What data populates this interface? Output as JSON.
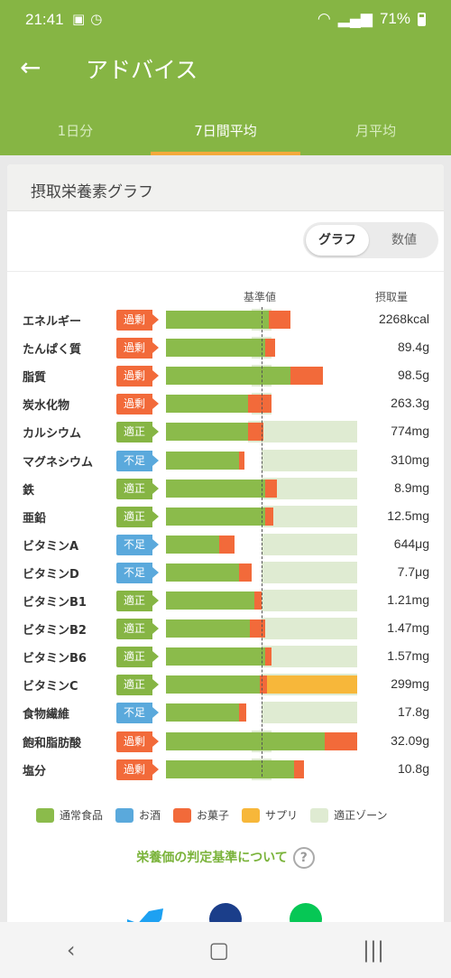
{
  "status_bar": {
    "time": "21:41",
    "battery": "71%"
  },
  "app_bar": {
    "title": "アドバイス",
    "tabs": [
      {
        "label": "1日分",
        "active": false
      },
      {
        "label": "7日間平均",
        "active": true
      },
      {
        "label": "月平均",
        "active": false
      }
    ]
  },
  "card": {
    "title": "摂取栄養素グラフ",
    "toggle": {
      "graph": "グラフ",
      "number": "数値",
      "selected": "グラフ"
    },
    "header_baseline": "基準値",
    "header_intake": "摂取量"
  },
  "nutrients": [
    {
      "name": "エネルギー",
      "status": "過剰",
      "amount": "2268kcal",
      "zone": [
        0.45,
        0.55
      ],
      "food": 0.54,
      "snack": 0.11,
      "supp": 0
    },
    {
      "name": "たんぱく質",
      "status": "過剰",
      "amount": "89.4g",
      "zone": [
        0.45,
        0.55
      ],
      "food": 0.52,
      "snack": 0.05,
      "supp": 0
    },
    {
      "name": "脂質",
      "status": "過剰",
      "amount": "98.5g",
      "zone": [
        0.45,
        0.55
      ],
      "food": 0.65,
      "snack": 0.17,
      "supp": 0
    },
    {
      "name": "炭水化物",
      "status": "過剰",
      "amount": "263.3g",
      "zone": [
        0.45,
        0.55
      ],
      "food": 0.43,
      "snack": 0.12,
      "supp": 0
    },
    {
      "name": "カルシウム",
      "status": "適正",
      "amount": "774mg",
      "zone": [
        0.43,
        1.0
      ],
      "food": 0.43,
      "snack": 0.08,
      "supp": 0
    },
    {
      "name": "マグネシウム",
      "status": "不足",
      "amount": "310mg",
      "zone": [
        0.5,
        1.0
      ],
      "food": 0.38,
      "snack": 0.03,
      "supp": 0
    },
    {
      "name": "鉄",
      "status": "適正",
      "amount": "8.9mg",
      "zone": [
        0.5,
        1.0
      ],
      "food": 0.52,
      "snack": 0.06,
      "supp": 0
    },
    {
      "name": "亜鉛",
      "status": "適正",
      "amount": "12.5mg",
      "zone": [
        0.5,
        1.0
      ],
      "food": 0.52,
      "snack": 0.04,
      "supp": 0
    },
    {
      "name": "ビタミンA",
      "status": "不足",
      "amount": "644μg",
      "zone": [
        0.5,
        1.0
      ],
      "food": 0.28,
      "snack": 0.08,
      "supp": 0
    },
    {
      "name": "ビタミンD",
      "status": "不足",
      "amount": "7.7μg",
      "zone": [
        0.5,
        1.0
      ],
      "food": 0.38,
      "snack": 0.07,
      "supp": 0
    },
    {
      "name": "ビタミンB1",
      "status": "適正",
      "amount": "1.21mg",
      "zone": [
        0.5,
        1.0
      ],
      "food": 0.46,
      "snack": 0.04,
      "supp": 0
    },
    {
      "name": "ビタミンB2",
      "status": "適正",
      "amount": "1.47mg",
      "zone": [
        0.5,
        1.0
      ],
      "food": 0.44,
      "snack": 0.08,
      "supp": 0
    },
    {
      "name": "ビタミンB6",
      "status": "適正",
      "amount": "1.57mg",
      "zone": [
        0.5,
        1.0
      ],
      "food": 0.52,
      "snack": 0.03,
      "supp": 0
    },
    {
      "name": "ビタミンC",
      "status": "適正",
      "amount": "299mg",
      "zone": [
        0.5,
        1.0
      ],
      "food": 0.49,
      "snack": 0.04,
      "supp": 0.47
    },
    {
      "name": "食物繊維",
      "status": "不足",
      "amount": "17.8g",
      "zone": [
        0.5,
        1.0
      ],
      "food": 0.38,
      "snack": 0.04,
      "supp": 0
    },
    {
      "name": "飽和脂肪酸",
      "status": "過剰",
      "amount": "32.09g",
      "zone": [
        0.45,
        0.55
      ],
      "food": 0.83,
      "snack": 0.17,
      "supp": 0
    },
    {
      "name": "塩分",
      "status": "過剰",
      "amount": "10.8g",
      "zone": [
        0.45,
        0.55
      ],
      "food": 0.67,
      "snack": 0.05,
      "supp": 0
    }
  ],
  "legend": [
    {
      "label": "通常食品",
      "color": "#8bbb4b"
    },
    {
      "label": "お酒",
      "color": "#5aa9dc"
    },
    {
      "label": "お菓子",
      "color": "#f26a3a"
    },
    {
      "label": "サプリ",
      "color": "#f7b73a"
    },
    {
      "label": "適正ゾーン",
      "color": "#dfebd2"
    }
  ],
  "criteria_link": "栄養価の判定基準について",
  "criteria_help": "?",
  "share_icons": [
    "twitter-icon",
    "facebook-icon",
    "line-icon"
  ],
  "nav_icons": [
    "back-nav-icon",
    "home-nav-icon",
    "recents-nav-icon"
  ]
}
